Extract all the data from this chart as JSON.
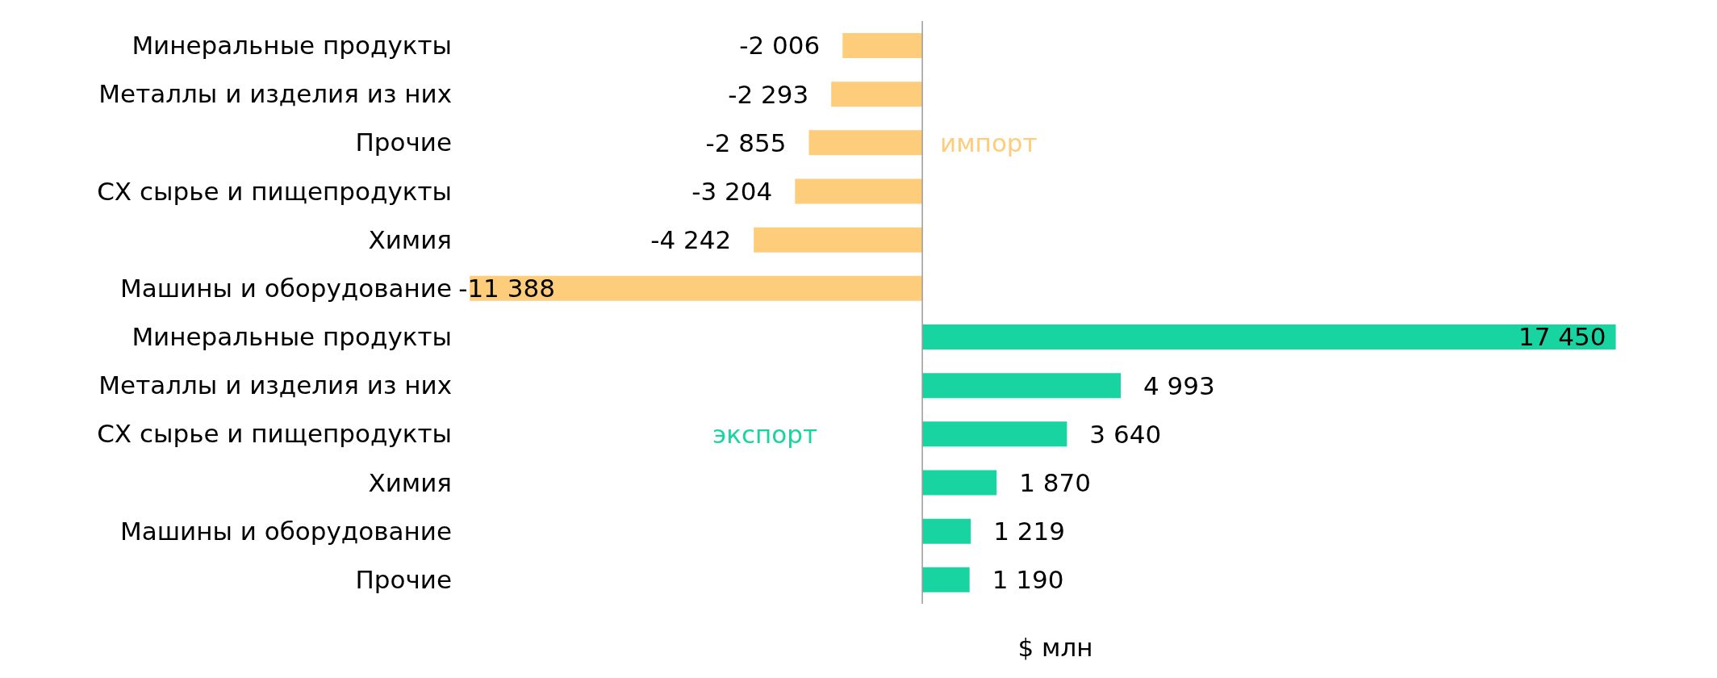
{
  "chart_data": {
    "type": "bar",
    "orientation": "horizontal",
    "stacked": true,
    "xlabel": "$ млн",
    "categories": [
      "Минеральные продукты",
      "Металлы и изделия из них",
      "Прочие",
      "СХ сырье и пищепродукты",
      "Химия",
      "Машины и оборудование",
      "Минеральные продукты",
      "Металлы и изделия из них",
      "СХ сырье и пищепродукты",
      "Химия",
      "Машины и оборудование",
      "Прочие"
    ],
    "series": [
      {
        "name": "импорт",
        "color": "#fdcd7c",
        "values": [
          -2006,
          -2293,
          -2855,
          -3204,
          -4242,
          -11388,
          null,
          null,
          null,
          null,
          null,
          null
        ],
        "value_labels": [
          "-2 006",
          "-2 293",
          "-2 855",
          "-3 204",
          "-4 242",
          "-11 388",
          null,
          null,
          null,
          null,
          null,
          null
        ]
      },
      {
        "name": "экспорт",
        "color": "#17d4a0",
        "values": [
          null,
          null,
          null,
          null,
          null,
          null,
          17450,
          4993,
          3640,
          1870,
          1219,
          1190
        ],
        "value_labels": [
          null,
          null,
          null,
          null,
          null,
          null,
          "17 450",
          "4 993",
          "3 640",
          "1 870",
          "1 219",
          "1 190"
        ]
      }
    ],
    "grid": false,
    "legend": false
  }
}
